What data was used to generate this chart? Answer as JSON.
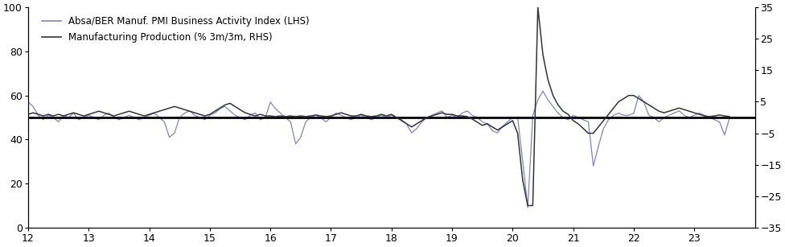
{
  "legend_lhs": "Absa/BER Manuf. PMI Business Activity Index (LHS)",
  "legend_rhs": "Manufacturing Production (% 3m/3m, RHS)",
  "lhs_color": "#8080cc",
  "rhs_color": "#333333",
  "x_min": 12,
  "x_max": 24,
  "lhs_ylim": [
    0,
    100
  ],
  "rhs_ylim": [
    -35,
    35
  ],
  "lhs_yticks": [
    0,
    20,
    40,
    60,
    80,
    100
  ],
  "rhs_yticks": [
    -35,
    -25,
    -15,
    -5,
    5,
    15,
    25,
    35
  ],
  "x_ticks": [
    12,
    13,
    14,
    15,
    16,
    17,
    18,
    19,
    20,
    21,
    22,
    23
  ],
  "pmi_data": [
    [
      12.0,
      57
    ],
    [
      12.083,
      55
    ],
    [
      12.167,
      51
    ],
    [
      12.25,
      49
    ],
    [
      12.333,
      51
    ],
    [
      12.417,
      50
    ],
    [
      12.5,
      48
    ],
    [
      12.583,
      51
    ],
    [
      12.667,
      50
    ],
    [
      12.75,
      52
    ],
    [
      12.833,
      49
    ],
    [
      12.917,
      50
    ],
    [
      13.0,
      51
    ],
    [
      13.083,
      50
    ],
    [
      13.167,
      49
    ],
    [
      13.25,
      51
    ],
    [
      13.333,
      52
    ],
    [
      13.417,
      50
    ],
    [
      13.5,
      49
    ],
    [
      13.583,
      50
    ],
    [
      13.667,
      51
    ],
    [
      13.75,
      50
    ],
    [
      13.833,
      49
    ],
    [
      13.917,
      50
    ],
    [
      14.0,
      51
    ],
    [
      14.083,
      52
    ],
    [
      14.167,
      50
    ],
    [
      14.25,
      48
    ],
    [
      14.333,
      41
    ],
    [
      14.417,
      43
    ],
    [
      14.5,
      50
    ],
    [
      14.583,
      52
    ],
    [
      14.667,
      53
    ],
    [
      14.75,
      51
    ],
    [
      14.833,
      50
    ],
    [
      14.917,
      49
    ],
    [
      15.0,
      51
    ],
    [
      15.083,
      52
    ],
    [
      15.167,
      54
    ],
    [
      15.25,
      55
    ],
    [
      15.333,
      53
    ],
    [
      15.417,
      51
    ],
    [
      15.5,
      50
    ],
    [
      15.583,
      49
    ],
    [
      15.667,
      51
    ],
    [
      15.75,
      52
    ],
    [
      15.833,
      49
    ],
    [
      15.917,
      50
    ],
    [
      16.0,
      57
    ],
    [
      16.083,
      54
    ],
    [
      16.167,
      52
    ],
    [
      16.25,
      50
    ],
    [
      16.333,
      48
    ],
    [
      16.417,
      38
    ],
    [
      16.5,
      41
    ],
    [
      16.583,
      48
    ],
    [
      16.667,
      50
    ],
    [
      16.75,
      51
    ],
    [
      16.833,
      50
    ],
    [
      16.917,
      48
    ],
    [
      17.0,
      50
    ],
    [
      17.083,
      52
    ],
    [
      17.167,
      51
    ],
    [
      17.25,
      50
    ],
    [
      17.333,
      49
    ],
    [
      17.417,
      50
    ],
    [
      17.5,
      51
    ],
    [
      17.583,
      50
    ],
    [
      17.667,
      49
    ],
    [
      17.75,
      50
    ],
    [
      17.833,
      51
    ],
    [
      17.917,
      50
    ],
    [
      18.0,
      51
    ],
    [
      18.083,
      50
    ],
    [
      18.167,
      49
    ],
    [
      18.25,
      47
    ],
    [
      18.333,
      43
    ],
    [
      18.417,
      45
    ],
    [
      18.5,
      48
    ],
    [
      18.583,
      50
    ],
    [
      18.667,
      51
    ],
    [
      18.75,
      52
    ],
    [
      18.833,
      53
    ],
    [
      18.917,
      50
    ],
    [
      19.0,
      51
    ],
    [
      19.083,
      50
    ],
    [
      19.167,
      52
    ],
    [
      19.25,
      53
    ],
    [
      19.333,
      51
    ],
    [
      19.417,
      50
    ],
    [
      19.5,
      48
    ],
    [
      19.583,
      47
    ],
    [
      19.667,
      44
    ],
    [
      19.75,
      43
    ],
    [
      19.833,
      46
    ],
    [
      19.917,
      48
    ],
    [
      20.0,
      50
    ],
    [
      20.083,
      50
    ],
    [
      20.167,
      30
    ],
    [
      20.25,
      9
    ],
    [
      20.333,
      51
    ],
    [
      20.417,
      58
    ],
    [
      20.5,
      62
    ],
    [
      20.583,
      58
    ],
    [
      20.667,
      55
    ],
    [
      20.75,
      52
    ],
    [
      20.833,
      50
    ],
    [
      20.917,
      49
    ],
    [
      21.0,
      51
    ],
    [
      21.083,
      50
    ],
    [
      21.167,
      49
    ],
    [
      21.25,
      48
    ],
    [
      21.333,
      28
    ],
    [
      21.417,
      37
    ],
    [
      21.5,
      45
    ],
    [
      21.583,
      49
    ],
    [
      21.667,
      51
    ],
    [
      21.75,
      52
    ],
    [
      21.833,
      51
    ],
    [
      21.917,
      51
    ],
    [
      22.0,
      52
    ],
    [
      22.083,
      60
    ],
    [
      22.167,
      57
    ],
    [
      22.25,
      51
    ],
    [
      22.333,
      50
    ],
    [
      22.417,
      48
    ],
    [
      22.5,
      50
    ],
    [
      22.583,
      51
    ],
    [
      22.667,
      52
    ],
    [
      22.75,
      53
    ],
    [
      22.833,
      51
    ],
    [
      22.917,
      50
    ],
    [
      23.0,
      51
    ],
    [
      23.083,
      52
    ],
    [
      23.167,
      51
    ],
    [
      23.25,
      50
    ],
    [
      23.333,
      49
    ],
    [
      23.417,
      48
    ],
    [
      23.5,
      42
    ],
    [
      23.583,
      50
    ]
  ],
  "mfg_data": [
    [
      12.0,
      1.0
    ],
    [
      12.083,
      1.5
    ],
    [
      12.167,
      1.0
    ],
    [
      12.25,
      0.5
    ],
    [
      12.333,
      1.0
    ],
    [
      12.417,
      0.5
    ],
    [
      12.5,
      1.0
    ],
    [
      12.583,
      0.5
    ],
    [
      12.667,
      1.0
    ],
    [
      12.75,
      1.5
    ],
    [
      12.833,
      1.0
    ],
    [
      12.917,
      0.5
    ],
    [
      13.0,
      1.0
    ],
    [
      13.083,
      1.5
    ],
    [
      13.167,
      2.0
    ],
    [
      13.25,
      1.5
    ],
    [
      13.333,
      1.0
    ],
    [
      13.417,
      0.5
    ],
    [
      13.5,
      1.0
    ],
    [
      13.583,
      1.5
    ],
    [
      13.667,
      2.0
    ],
    [
      13.75,
      1.5
    ],
    [
      13.833,
      1.0
    ],
    [
      13.917,
      0.5
    ],
    [
      14.0,
      1.0
    ],
    [
      14.083,
      1.5
    ],
    [
      14.167,
      2.0
    ],
    [
      14.25,
      2.5
    ],
    [
      14.333,
      3.0
    ],
    [
      14.417,
      3.5
    ],
    [
      14.5,
      3.0
    ],
    [
      14.583,
      2.5
    ],
    [
      14.667,
      2.0
    ],
    [
      14.75,
      1.5
    ],
    [
      14.833,
      1.0
    ],
    [
      14.917,
      0.5
    ],
    [
      15.0,
      1.0
    ],
    [
      15.083,
      2.0
    ],
    [
      15.167,
      3.0
    ],
    [
      15.25,
      4.0
    ],
    [
      15.333,
      4.5
    ],
    [
      15.417,
      3.5
    ],
    [
      15.5,
      2.5
    ],
    [
      15.583,
      1.5
    ],
    [
      15.667,
      1.0
    ],
    [
      15.75,
      0.5
    ],
    [
      15.833,
      1.0
    ],
    [
      15.917,
      0.5
    ],
    [
      16.0,
      0.5
    ],
    [
      16.083,
      0.3
    ],
    [
      16.167,
      0.5
    ],
    [
      16.25,
      0.3
    ],
    [
      16.333,
      0.5
    ],
    [
      16.417,
      0.3
    ],
    [
      16.5,
      0.5
    ],
    [
      16.583,
      0.3
    ],
    [
      16.667,
      0.5
    ],
    [
      16.75,
      0.8
    ],
    [
      16.833,
      0.5
    ],
    [
      16.917,
      0.3
    ],
    [
      17.0,
      0.5
    ],
    [
      17.083,
      1.0
    ],
    [
      17.167,
      1.5
    ],
    [
      17.25,
      1.0
    ],
    [
      17.333,
      0.5
    ],
    [
      17.417,
      0.5
    ],
    [
      17.5,
      1.0
    ],
    [
      17.583,
      0.5
    ],
    [
      17.667,
      0.3
    ],
    [
      17.75,
      0.5
    ],
    [
      17.833,
      1.0
    ],
    [
      17.917,
      0.5
    ],
    [
      18.0,
      1.0
    ],
    [
      18.083,
      0.0
    ],
    [
      18.167,
      -1.0
    ],
    [
      18.25,
      -2.0
    ],
    [
      18.333,
      -3.0
    ],
    [
      18.417,
      -2.0
    ],
    [
      18.5,
      -1.0
    ],
    [
      18.583,
      0.0
    ],
    [
      18.667,
      0.5
    ],
    [
      18.75,
      1.0
    ],
    [
      18.833,
      1.5
    ],
    [
      18.917,
      1.0
    ],
    [
      19.0,
      1.0
    ],
    [
      19.083,
      0.5
    ],
    [
      19.167,
      0.5
    ],
    [
      19.25,
      0.3
    ],
    [
      19.333,
      -0.5
    ],
    [
      19.417,
      -1.5
    ],
    [
      19.5,
      -2.5
    ],
    [
      19.583,
      -2.0
    ],
    [
      19.667,
      -3.0
    ],
    [
      19.75,
      -4.0
    ],
    [
      19.833,
      -3.0
    ],
    [
      19.917,
      -2.0
    ],
    [
      20.0,
      -1.0
    ],
    [
      20.083,
      -5.0
    ],
    [
      20.167,
      -20.0
    ],
    [
      20.25,
      -28.0
    ],
    [
      20.333,
      -28.0
    ],
    [
      20.417,
      35.0
    ],
    [
      20.5,
      20.0
    ],
    [
      20.583,
      12.0
    ],
    [
      20.667,
      7.0
    ],
    [
      20.75,
      4.0
    ],
    [
      20.833,
      2.0
    ],
    [
      20.917,
      1.0
    ],
    [
      21.0,
      -1.0
    ],
    [
      21.083,
      -2.0
    ],
    [
      21.167,
      -3.5
    ],
    [
      21.25,
      -5.0
    ],
    [
      21.333,
      -5.0
    ],
    [
      21.417,
      -3.0
    ],
    [
      21.5,
      -1.0
    ],
    [
      21.583,
      1.0
    ],
    [
      21.667,
      3.0
    ],
    [
      21.75,
      5.0
    ],
    [
      21.833,
      6.0
    ],
    [
      21.917,
      7.0
    ],
    [
      22.0,
      7.0
    ],
    [
      22.083,
      6.0
    ],
    [
      22.167,
      5.0
    ],
    [
      22.25,
      4.0
    ],
    [
      22.333,
      3.0
    ],
    [
      22.417,
      2.0
    ],
    [
      22.5,
      1.5
    ],
    [
      22.583,
      2.0
    ],
    [
      22.667,
      2.5
    ],
    [
      22.75,
      3.0
    ],
    [
      22.833,
      2.5
    ],
    [
      22.917,
      2.0
    ],
    [
      23.0,
      1.5
    ],
    [
      23.083,
      1.0
    ],
    [
      23.167,
      0.5
    ],
    [
      23.25,
      0.3
    ],
    [
      23.333,
      0.5
    ],
    [
      23.417,
      0.8
    ],
    [
      23.5,
      0.5
    ],
    [
      23.583,
      0.3
    ]
  ],
  "hline_lhs": 50,
  "figsize": [
    9.76,
    3.07
  ],
  "dpi": 100
}
